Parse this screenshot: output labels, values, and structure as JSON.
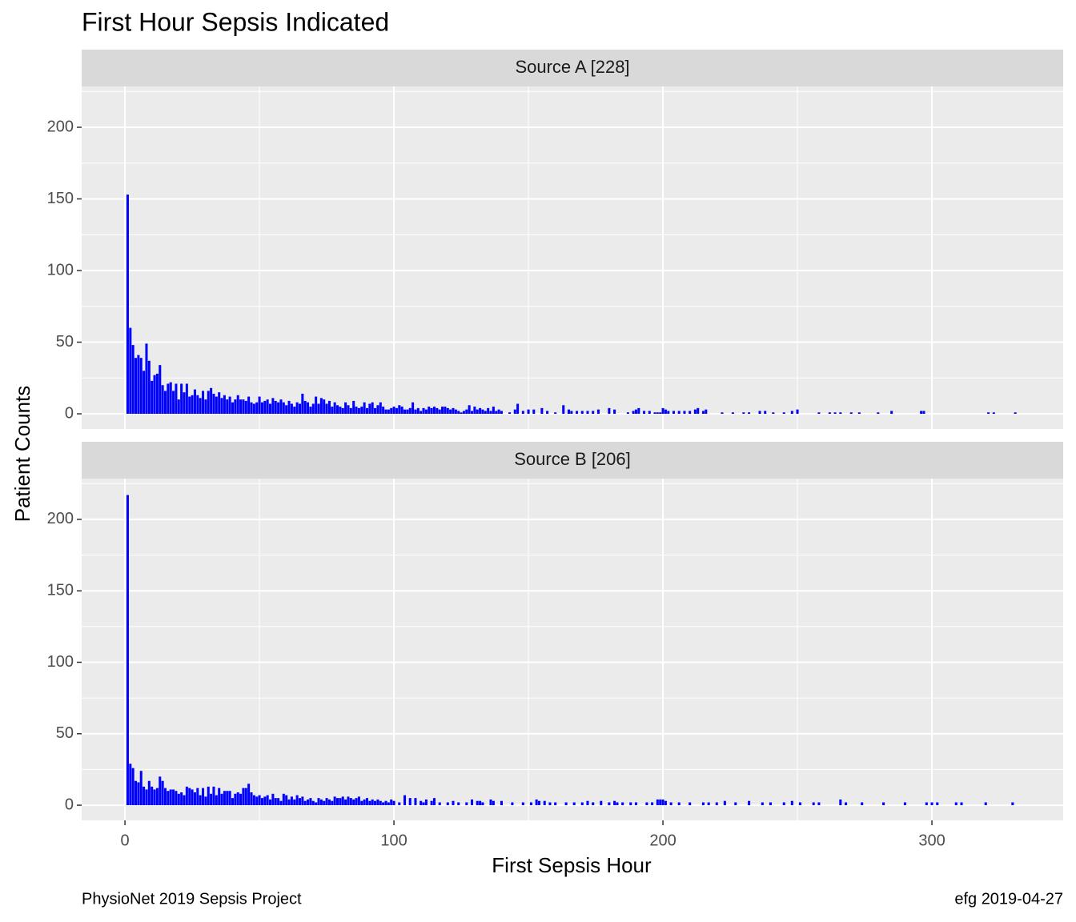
{
  "title": "First Hour Sepsis Indicated",
  "x_label": "First Sepsis Hour",
  "y_label": "Patient Counts",
  "caption_left": "PhysioNet 2019 Sepsis Project",
  "caption_right": "efg 2019-04-27",
  "chart_data": [
    {
      "type": "bar",
      "title": "Source A [228]",
      "color": "#0000ff",
      "grid": true,
      "xlim": [
        -16.1,
        348.8
      ],
      "xticks": [
        0,
        100,
        200,
        300
      ],
      "x_minor_grid": [
        50,
        150,
        250
      ],
      "ylim": [
        -10.6,
        228.5
      ],
      "yticks": [
        0,
        50,
        100,
        150,
        200
      ],
      "y_minor_grid": [
        25,
        75,
        125,
        175,
        225
      ],
      "x": [
        1,
        2,
        3,
        4,
        5,
        6,
        7,
        8,
        9,
        10,
        11,
        12,
        13,
        14,
        15,
        16,
        17,
        18,
        19,
        20,
        21,
        22,
        23,
        24,
        25,
        26,
        27,
        28,
        29,
        30,
        31,
        32,
        33,
        34,
        35,
        36,
        37,
        38,
        39,
        40,
        41,
        42,
        43,
        44,
        45,
        46,
        47,
        48,
        49,
        50,
        51,
        52,
        53,
        54,
        55,
        56,
        57,
        58,
        59,
        60,
        61,
        62,
        63,
        64,
        65,
        66,
        67,
        68,
        69,
        70,
        71,
        72,
        73,
        74,
        75,
        76,
        77,
        78,
        79,
        80,
        81,
        82,
        83,
        84,
        85,
        86,
        87,
        88,
        89,
        90,
        91,
        92,
        93,
        94,
        95,
        96,
        97,
        98,
        99,
        100,
        101,
        102,
        103,
        104,
        105,
        106,
        107,
        108,
        109,
        110,
        111,
        112,
        113,
        114,
        115,
        116,
        117,
        118,
        119,
        120,
        121,
        122,
        123,
        124,
        125,
        126,
        127,
        128,
        129,
        130,
        131,
        132,
        133,
        134,
        135,
        136,
        137,
        138,
        139,
        140,
        143,
        145,
        146,
        148,
        150,
        152,
        155,
        157,
        160,
        163,
        165,
        166,
        168,
        170,
        172,
        174,
        176,
        180,
        182,
        187,
        189,
        190,
        191,
        193,
        195,
        197,
        198,
        199,
        200,
        201,
        202,
        204,
        206,
        208,
        210,
        212,
        213,
        215,
        216,
        222,
        226,
        230,
        232,
        236,
        238,
        241,
        245,
        248,
        250,
        258,
        262,
        264,
        266,
        270,
        273,
        280,
        285,
        296,
        297,
        321,
        323,
        331
      ],
      "values": [
        153,
        60,
        48,
        39,
        41,
        39,
        30,
        49,
        37,
        23,
        27,
        28,
        34,
        20,
        16,
        21,
        22,
        16,
        21,
        10,
        21,
        15,
        21,
        12,
        13,
        17,
        13,
        11,
        16,
        10,
        16,
        18,
        14,
        12,
        15,
        11,
        13,
        10,
        12,
        8,
        10,
        13,
        10,
        10,
        9,
        12,
        8,
        7,
        8,
        12,
        8,
        9,
        10,
        7,
        11,
        9,
        8,
        10,
        8,
        6,
        9,
        7,
        5,
        8,
        7,
        14,
        9,
        8,
        5,
        7,
        12,
        7,
        11,
        10,
        7,
        9,
        5,
        8,
        6,
        5,
        4,
        8,
        6,
        4,
        9,
        5,
        4,
        5,
        8,
        4,
        7,
        8,
        4,
        6,
        8,
        5,
        3,
        3,
        4,
        5,
        4,
        6,
        5,
        3,
        3,
        4,
        8,
        3,
        4,
        2,
        4,
        3,
        5,
        4,
        5,
        4,
        3,
        5,
        5,
        4,
        3,
        4,
        3,
        2,
        1,
        2,
        3,
        6,
        2,
        5,
        3,
        4,
        3,
        2,
        4,
        2,
        5,
        2,
        3,
        2,
        1,
        3,
        7,
        2,
        3,
        3,
        4,
        2,
        1,
        6,
        3,
        2,
        2,
        2,
        2,
        2,
        3,
        4,
        3,
        1,
        2,
        3,
        4,
        2,
        2,
        1,
        1,
        1,
        4,
        3,
        2,
        2,
        2,
        2,
        2,
        3,
        4,
        2,
        3,
        1,
        1,
        1,
        1,
        2,
        2,
        1,
        1,
        2,
        3,
        1,
        1,
        1,
        1,
        1,
        1,
        1,
        2,
        2,
        2,
        1,
        1,
        1
      ]
    },
    {
      "type": "bar",
      "title": "Source B [206]",
      "color": "#0000ff",
      "grid": true,
      "xlim": [
        -16.1,
        348.8
      ],
      "xticks": [
        0,
        100,
        200,
        300
      ],
      "x_minor_grid": [
        50,
        150,
        250
      ],
      "ylim": [
        -10.6,
        228.5
      ],
      "yticks": [
        0,
        50,
        100,
        150,
        200
      ],
      "y_minor_grid": [
        25,
        75,
        125,
        175,
        225
      ],
      "x": [
        1,
        2,
        3,
        4,
        5,
        6,
        7,
        8,
        9,
        10,
        11,
        12,
        13,
        14,
        15,
        16,
        17,
        18,
        19,
        20,
        21,
        22,
        23,
        24,
        25,
        26,
        27,
        28,
        29,
        30,
        31,
        32,
        33,
        34,
        35,
        36,
        37,
        38,
        39,
        40,
        41,
        42,
        43,
        44,
        45,
        46,
        47,
        48,
        49,
        50,
        51,
        52,
        53,
        54,
        55,
        56,
        57,
        58,
        59,
        60,
        61,
        62,
        63,
        64,
        65,
        66,
        67,
        68,
        69,
        70,
        71,
        72,
        73,
        74,
        75,
        76,
        77,
        78,
        79,
        80,
        81,
        82,
        83,
        84,
        85,
        86,
        87,
        88,
        89,
        90,
        91,
        92,
        93,
        94,
        95,
        96,
        97,
        98,
        99,
        100,
        102,
        104,
        106,
        108,
        110,
        111,
        112,
        114,
        115,
        117,
        120,
        122,
        124,
        127,
        129,
        131,
        132,
        133,
        136,
        137,
        140,
        144,
        148,
        151,
        153,
        154,
        156,
        158,
        160,
        164,
        167,
        170,
        172,
        174,
        177,
        180,
        182,
        183,
        185,
        188,
        190,
        194,
        196,
        198,
        199,
        200,
        201,
        203,
        206,
        210,
        215,
        217,
        220,
        223,
        227,
        232,
        237,
        240,
        245,
        248,
        251,
        256,
        258,
        266,
        268,
        274,
        282,
        290,
        298,
        300,
        302,
        309,
        311,
        320,
        330
      ],
      "values": [
        217,
        29,
        26,
        17,
        16,
        24,
        13,
        11,
        17,
        13,
        11,
        12,
        20,
        17,
        12,
        10,
        11,
        11,
        10,
        8,
        9,
        7,
        13,
        12,
        11,
        9,
        12,
        7,
        12,
        6,
        13,
        8,
        13,
        7,
        12,
        8,
        10,
        10,
        10,
        5,
        8,
        9,
        8,
        12,
        12,
        15,
        9,
        7,
        6,
        7,
        5,
        6,
        7,
        4,
        8,
        5,
        5,
        3,
        8,
        7,
        4,
        6,
        4,
        7,
        5,
        6,
        3,
        4,
        5,
        3,
        2,
        5,
        4,
        3,
        5,
        4,
        3,
        6,
        5,
        5,
        6,
        4,
        6,
        5,
        4,
        5,
        6,
        3,
        4,
        5,
        3,
        4,
        3,
        4,
        3,
        2,
        3,
        2,
        4,
        3,
        2,
        7,
        5,
        5,
        3,
        2,
        4,
        3,
        5,
        2,
        2,
        3,
        2,
        2,
        4,
        3,
        3,
        2,
        4,
        3,
        3,
        2,
        2,
        2,
        4,
        3,
        3,
        2,
        2,
        2,
        2,
        2,
        3,
        2,
        3,
        2,
        3,
        2,
        2,
        2,
        2,
        2,
        2,
        4,
        4,
        4,
        3,
        2,
        2,
        2,
        2,
        2,
        2,
        3,
        2,
        3,
        2,
        2,
        2,
        3,
        2,
        2,
        2,
        4,
        2,
        2,
        2,
        2,
        2,
        2,
        2,
        2,
        2,
        2,
        2
      ]
    }
  ]
}
